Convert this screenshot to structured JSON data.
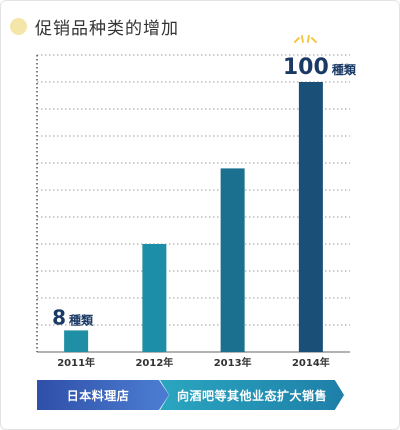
{
  "title": "促销品种类的增加",
  "chart_data": {
    "type": "bar",
    "categories": [
      "2011年",
      "2012年",
      "2013年",
      "2014年"
    ],
    "values": [
      8,
      40,
      68,
      100
    ],
    "ylim": [
      0,
      110
    ],
    "grid": true,
    "annotations": [
      {
        "category": "2011年",
        "number": "8",
        "unit": "種類"
      },
      {
        "category": "2014年",
        "number": "100",
        "unit": "種類"
      }
    ]
  },
  "banners": [
    {
      "label": "日本料理店"
    },
    {
      "label": "向酒吧等其他业态扩大销售"
    }
  ],
  "colors": {
    "bar_2011": "#1f8fa6",
    "bar_2012": "#1c8ea8",
    "bar_2013": "#1b6f8f",
    "bar_2014": "#1a4f78",
    "grid": "#999999",
    "sparkle": "#f5c842"
  }
}
